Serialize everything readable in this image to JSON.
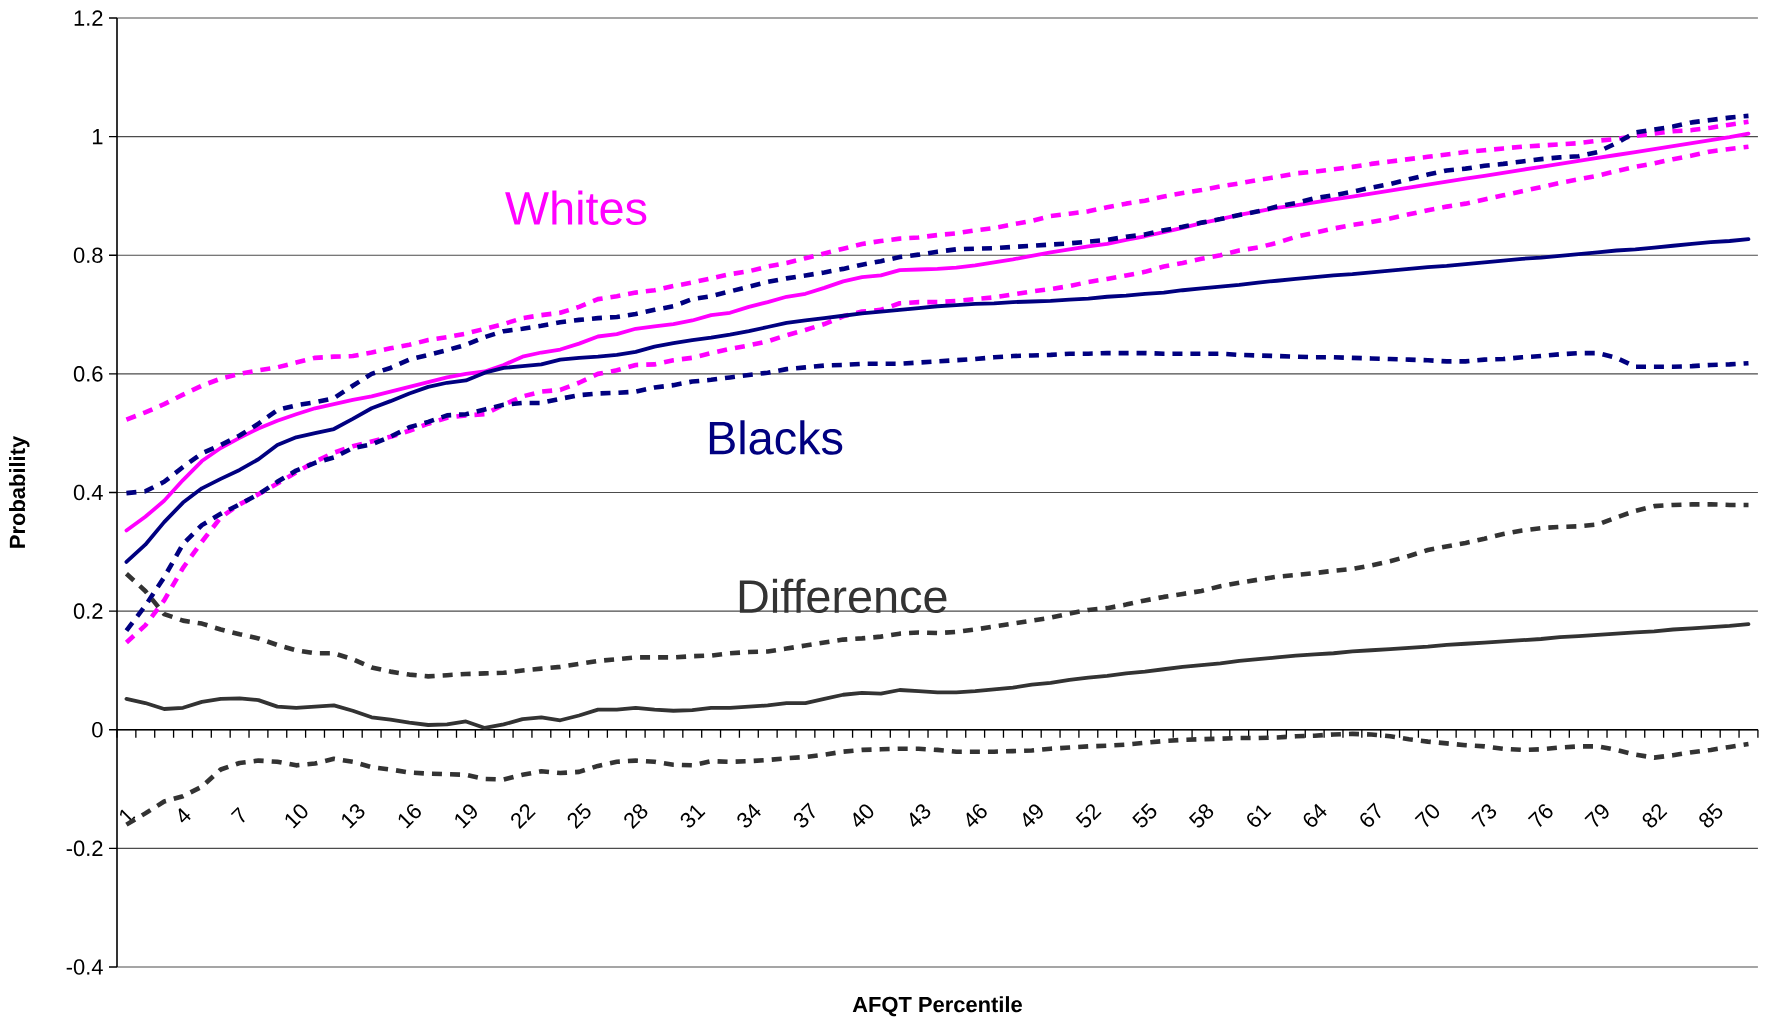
{
  "chart_data": {
    "type": "line",
    "xlabel": "AFQT Percentile",
    "ylabel": "Probability",
    "categories": [
      "1",
      null,
      null,
      "4",
      null,
      null,
      "7",
      null,
      null,
      "10",
      null,
      null,
      "13",
      null,
      null,
      "16",
      null,
      null,
      "19",
      null,
      null,
      "22",
      null,
      null,
      "25",
      null,
      null,
      "28",
      null,
      null,
      "31",
      null,
      null,
      "34",
      null,
      null,
      "37",
      null,
      null,
      "40",
      null,
      null,
      "43",
      null,
      null,
      "46",
      null,
      null,
      "49",
      null,
      null,
      "52",
      null,
      null,
      "55",
      null,
      null,
      "58",
      null,
      null,
      "61",
      null,
      null,
      "64",
      null,
      null,
      "67",
      null,
      null,
      "70",
      null,
      null,
      "73",
      null,
      null,
      "76",
      null,
      null,
      "79",
      null,
      null,
      "82",
      null,
      null,
      "85",
      null,
      null
    ],
    "ylim": [
      -0.4,
      1.2
    ],
    "yticks": [
      -0.4,
      -0.2,
      0,
      0.2,
      0.4,
      0.6,
      0.8,
      1,
      1.2
    ],
    "grid": "y",
    "legend": false,
    "marker": "none",
    "series": [
      {
        "name": "Whites",
        "color": "#ff00ff",
        "line_style": "solid",
        "values": [
          0.336,
          0.359,
          0.386,
          0.421,
          0.453,
          0.475,
          0.492,
          0.508,
          0.521,
          0.532,
          0.542,
          0.549,
          0.556,
          0.562,
          0.57,
          0.578,
          0.586,
          0.594,
          0.6,
          0.604,
          0.615,
          0.629,
          0.636,
          0.641,
          0.651,
          0.663,
          0.667,
          0.676,
          0.68,
          0.684,
          0.69,
          0.699,
          0.703,
          0.713,
          0.721,
          0.73,
          0.735,
          0.745,
          0.756,
          0.763,
          0.766,
          0.775,
          0.776,
          0.777,
          0.779,
          0.783,
          0.788,
          0.793,
          0.799,
          0.805,
          0.81,
          0.815,
          0.819,
          0.826,
          0.832,
          0.839,
          0.846,
          0.854,
          0.861,
          0.868,
          0.874,
          0.88,
          0.884,
          0.889,
          0.894,
          0.899,
          0.904,
          0.909,
          0.914,
          0.919,
          0.924,
          0.929,
          0.934,
          0.939,
          0.944,
          0.949,
          0.954,
          0.959,
          0.964,
          0.969,
          0.974,
          0.979,
          0.984,
          0.989,
          0.994,
          0.999,
          1.005
        ]
      },
      {
        "color": "#ff00ff",
        "line_style": "dashed",
        "values": [
          0.523,
          0.535,
          0.549,
          0.565,
          0.58,
          0.592,
          0.6,
          0.606,
          0.611,
          0.619,
          0.627,
          0.629,
          0.63,
          0.636,
          0.643,
          0.649,
          0.657,
          0.662,
          0.668,
          0.676,
          0.684,
          0.694,
          0.699,
          0.703,
          0.713,
          0.726,
          0.731,
          0.737,
          0.741,
          0.748,
          0.754,
          0.761,
          0.768,
          0.773,
          0.781,
          0.787,
          0.795,
          0.803,
          0.811,
          0.819,
          0.824,
          0.828,
          0.83,
          0.834,
          0.837,
          0.842,
          0.846,
          0.852,
          0.858,
          0.866,
          0.87,
          0.874,
          0.881,
          0.887,
          0.892,
          0.899,
          0.905,
          0.91,
          0.916,
          0.921,
          0.927,
          0.932,
          0.938,
          0.941,
          0.945,
          0.949,
          0.954,
          0.958,
          0.962,
          0.966,
          0.97,
          0.974,
          0.977,
          0.98,
          0.983,
          0.985,
          0.987,
          0.989,
          0.993,
          0.996,
          1.001,
          1.005,
          1.009,
          1.011,
          1.015,
          1.02,
          1.025
        ]
      },
      {
        "color": "#ff00ff",
        "line_style": "dashed",
        "values": [
          0.147,
          0.176,
          0.218,
          0.273,
          0.317,
          0.358,
          0.38,
          0.397,
          0.415,
          0.434,
          0.452,
          0.467,
          0.478,
          0.486,
          0.494,
          0.504,
          0.516,
          0.526,
          0.53,
          0.532,
          0.548,
          0.562,
          0.57,
          0.573,
          0.585,
          0.6,
          0.606,
          0.615,
          0.616,
          0.623,
          0.627,
          0.635,
          0.642,
          0.648,
          0.655,
          0.665,
          0.674,
          0.684,
          0.697,
          0.705,
          0.708,
          0.719,
          0.721,
          0.721,
          0.723,
          0.726,
          0.729,
          0.734,
          0.739,
          0.743,
          0.748,
          0.755,
          0.76,
          0.766,
          0.772,
          0.781,
          0.787,
          0.794,
          0.8,
          0.808,
          0.813,
          0.821,
          0.831,
          0.838,
          0.845,
          0.851,
          0.856,
          0.862,
          0.869,
          0.876,
          0.882,
          0.887,
          0.894,
          0.901,
          0.908,
          0.915,
          0.922,
          0.928,
          0.934,
          0.942,
          0.949,
          0.955,
          0.962,
          0.968,
          0.975,
          0.979,
          0.983
        ]
      },
      {
        "name": "Blacks",
        "color": "#000080",
        "line_style": "solid",
        "values": [
          0.283,
          0.312,
          0.35,
          0.383,
          0.407,
          0.423,
          0.438,
          0.456,
          0.48,
          0.493,
          0.5,
          0.507,
          0.524,
          0.542,
          0.554,
          0.567,
          0.578,
          0.585,
          0.589,
          0.602,
          0.61,
          0.613,
          0.616,
          0.624,
          0.627,
          0.629,
          0.632,
          0.637,
          0.646,
          0.652,
          0.657,
          0.661,
          0.666,
          0.672,
          0.679,
          0.686,
          0.69,
          0.694,
          0.698,
          0.702,
          0.705,
          0.708,
          0.711,
          0.714,
          0.716,
          0.718,
          0.719,
          0.721,
          0.722,
          0.723,
          0.725,
          0.727,
          0.73,
          0.732,
          0.735,
          0.737,
          0.741,
          0.744,
          0.747,
          0.75,
          0.754,
          0.757,
          0.76,
          0.763,
          0.766,
          0.768,
          0.771,
          0.774,
          0.777,
          0.78,
          0.782,
          0.785,
          0.788,
          0.791,
          0.794,
          0.796,
          0.799,
          0.802,
          0.805,
          0.808,
          0.81,
          0.813,
          0.816,
          0.819,
          0.822,
          0.824,
          0.827
        ]
      },
      {
        "color": "#000080",
        "line_style": "dashed",
        "values": [
          0.399,
          0.402,
          0.418,
          0.443,
          0.466,
          0.48,
          0.496,
          0.516,
          0.539,
          0.547,
          0.552,
          0.559,
          0.58,
          0.6,
          0.61,
          0.624,
          0.632,
          0.64,
          0.649,
          0.662,
          0.672,
          0.676,
          0.681,
          0.687,
          0.691,
          0.694,
          0.696,
          0.701,
          0.708,
          0.714,
          0.726,
          0.731,
          0.739,
          0.747,
          0.755,
          0.761,
          0.766,
          0.771,
          0.777,
          0.784,
          0.79,
          0.797,
          0.801,
          0.806,
          0.81,
          0.811,
          0.812,
          0.814,
          0.816,
          0.818,
          0.82,
          0.823,
          0.826,
          0.831,
          0.835,
          0.842,
          0.848,
          0.855,
          0.861,
          0.868,
          0.874,
          0.882,
          0.888,
          0.896,
          0.901,
          0.907,
          0.914,
          0.92,
          0.928,
          0.936,
          0.943,
          0.946,
          0.951,
          0.954,
          0.958,
          0.962,
          0.965,
          0.967,
          0.974,
          0.989,
          1.007,
          1.012,
          1.017,
          1.024,
          1.028,
          1.032,
          1.035
        ]
      },
      {
        "color": "#000080",
        "line_style": "dashed",
        "values": [
          0.167,
          0.209,
          0.257,
          0.313,
          0.345,
          0.364,
          0.38,
          0.397,
          0.418,
          0.437,
          0.45,
          0.459,
          0.475,
          0.481,
          0.494,
          0.51,
          0.519,
          0.53,
          0.532,
          0.54,
          0.548,
          0.551,
          0.551,
          0.558,
          0.564,
          0.567,
          0.568,
          0.57,
          0.577,
          0.581,
          0.587,
          0.59,
          0.594,
          0.598,
          0.602,
          0.608,
          0.611,
          0.614,
          0.615,
          0.617,
          0.617,
          0.617,
          0.619,
          0.621,
          0.623,
          0.625,
          0.628,
          0.63,
          0.631,
          0.632,
          0.634,
          0.634,
          0.635,
          0.635,
          0.635,
          0.634,
          0.634,
          0.634,
          0.634,
          0.632,
          0.631,
          0.63,
          0.629,
          0.628,
          0.628,
          0.627,
          0.626,
          0.625,
          0.624,
          0.623,
          0.621,
          0.621,
          0.624,
          0.625,
          0.628,
          0.63,
          0.633,
          0.635,
          0.635,
          0.627,
          0.612,
          0.612,
          0.612,
          0.613,
          0.615,
          0.616,
          0.618
        ]
      },
      {
        "name": "Difference",
        "color": "#333333",
        "line_style": "solid",
        "values": [
          0.052,
          0.045,
          0.035,
          0.037,
          0.047,
          0.052,
          0.053,
          0.05,
          0.039,
          0.037,
          0.039,
          0.041,
          0.032,
          0.021,
          0.017,
          0.012,
          0.008,
          0.009,
          0.014,
          0.003,
          0.009,
          0.018,
          0.021,
          0.016,
          0.024,
          0.034,
          0.034,
          0.037,
          0.034,
          0.032,
          0.033,
          0.037,
          0.037,
          0.039,
          0.041,
          0.045,
          0.045,
          0.052,
          0.059,
          0.062,
          0.061,
          0.067,
          0.065,
          0.063,
          0.063,
          0.065,
          0.068,
          0.071,
          0.076,
          0.079,
          0.084,
          0.088,
          0.091,
          0.095,
          0.098,
          0.102,
          0.106,
          0.109,
          0.112,
          0.116,
          0.119,
          0.122,
          0.125,
          0.127,
          0.129,
          0.132,
          0.134,
          0.136,
          0.138,
          0.14,
          0.143,
          0.145,
          0.147,
          0.149,
          0.151,
          0.153,
          0.156,
          0.158,
          0.16,
          0.162,
          0.164,
          0.166,
          0.169,
          0.171,
          0.173,
          0.175,
          0.178
        ]
      },
      {
        "color": "#333333",
        "line_style": "dashed",
        "values": [
          0.263,
          0.234,
          0.195,
          0.184,
          0.179,
          0.169,
          0.161,
          0.154,
          0.143,
          0.134,
          0.129,
          0.129,
          0.119,
          0.105,
          0.098,
          0.093,
          0.09,
          0.092,
          0.094,
          0.095,
          0.096,
          0.1,
          0.103,
          0.106,
          0.111,
          0.116,
          0.119,
          0.122,
          0.122,
          0.122,
          0.124,
          0.125,
          0.129,
          0.131,
          0.132,
          0.137,
          0.142,
          0.147,
          0.152,
          0.154,
          0.157,
          0.162,
          0.164,
          0.163,
          0.165,
          0.169,
          0.174,
          0.179,
          0.184,
          0.189,
          0.196,
          0.202,
          0.205,
          0.211,
          0.218,
          0.224,
          0.229,
          0.234,
          0.242,
          0.248,
          0.253,
          0.258,
          0.261,
          0.264,
          0.268,
          0.271,
          0.277,
          0.284,
          0.293,
          0.303,
          0.309,
          0.315,
          0.322,
          0.33,
          0.336,
          0.34,
          0.342,
          0.343,
          0.346,
          0.358,
          0.369,
          0.377,
          0.379,
          0.38,
          0.38,
          0.379,
          0.379
        ]
      },
      {
        "color": "#333333",
        "line_style": "dashed",
        "values": [
          -0.16,
          -0.141,
          -0.121,
          -0.112,
          -0.096,
          -0.067,
          -0.056,
          -0.052,
          -0.054,
          -0.06,
          -0.057,
          -0.049,
          -0.054,
          -0.063,
          -0.067,
          -0.072,
          -0.074,
          -0.075,
          -0.076,
          -0.083,
          -0.084,
          -0.076,
          -0.07,
          -0.073,
          -0.071,
          -0.061,
          -0.054,
          -0.052,
          -0.054,
          -0.059,
          -0.06,
          -0.053,
          -0.054,
          -0.053,
          -0.051,
          -0.048,
          -0.046,
          -0.042,
          -0.037,
          -0.034,
          -0.033,
          -0.032,
          -0.032,
          -0.034,
          -0.037,
          -0.037,
          -0.037,
          -0.036,
          -0.035,
          -0.032,
          -0.03,
          -0.028,
          -0.027,
          -0.025,
          -0.022,
          -0.019,
          -0.017,
          -0.016,
          -0.015,
          -0.014,
          -0.014,
          -0.013,
          -0.011,
          -0.01,
          -0.008,
          -0.007,
          -0.008,
          -0.011,
          -0.016,
          -0.02,
          -0.023,
          -0.026,
          -0.028,
          -0.032,
          -0.034,
          -0.033,
          -0.03,
          -0.028,
          -0.028,
          -0.034,
          -0.042,
          -0.047,
          -0.043,
          -0.038,
          -0.034,
          -0.029,
          -0.024
        ]
      }
    ]
  }
}
